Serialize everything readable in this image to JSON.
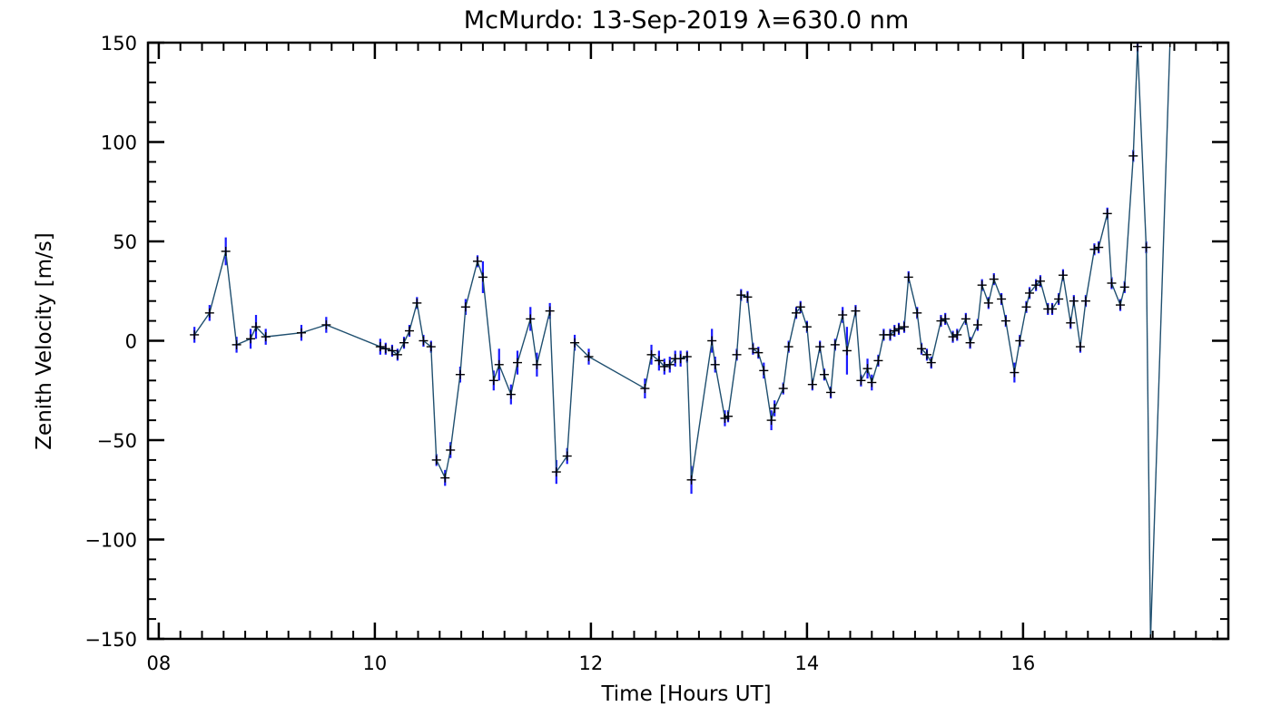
{
  "chart_data": {
    "type": "line",
    "title": "McMurdo: 13-Sep-2019 λ=630.0 nm",
    "xlabel": "Time [Hours UT]",
    "ylabel": "Zenith Velocity [m/s]",
    "xlim": [
      7.9,
      17.9
    ],
    "ylim": [
      -150,
      150
    ],
    "x_ticks": [
      8,
      10,
      12,
      14,
      16
    ],
    "x_tick_labels": [
      "08",
      "10",
      "12",
      "14",
      "16"
    ],
    "y_ticks": [
      -150,
      -100,
      -50,
      0,
      50,
      100,
      150
    ],
    "y_tick_labels": [
      "−150",
      "−100",
      "−50",
      "0",
      "50",
      "100",
      "150"
    ],
    "grid": false,
    "colors": {
      "line": "#1f4f6f",
      "error_bar": "#1a1aff",
      "marker": "#000000",
      "axis": "#000000"
    },
    "series": [
      {
        "marker": "plus",
        "points": [
          {
            "x": 8.33,
            "y": 3,
            "err": 4
          },
          {
            "x": 8.47,
            "y": 14,
            "err": 4
          },
          {
            "x": 8.62,
            "y": 45,
            "err": 7
          },
          {
            "x": 8.72,
            "y": -2,
            "err": 4
          },
          {
            "x": 8.85,
            "y": 1,
            "err": 5
          },
          {
            "x": 8.9,
            "y": 7,
            "err": 6
          },
          {
            "x": 8.99,
            "y": 2,
            "err": 4
          },
          {
            "x": 9.32,
            "y": 4,
            "err": 4
          },
          {
            "x": 9.55,
            "y": 8,
            "err": 4
          },
          {
            "x": 10.05,
            "y": -3,
            "err": 4
          },
          {
            "x": 10.1,
            "y": -4,
            "err": 3
          },
          {
            "x": 10.16,
            "y": -5,
            "err": 3
          },
          {
            "x": 10.21,
            "y": -7,
            "err": 3
          },
          {
            "x": 10.27,
            "y": -1,
            "err": 3
          },
          {
            "x": 10.32,
            "y": 5,
            "err": 3
          },
          {
            "x": 10.39,
            "y": 19,
            "err": 3
          },
          {
            "x": 10.45,
            "y": 0,
            "err": 3
          },
          {
            "x": 10.52,
            "y": -3,
            "err": 3
          },
          {
            "x": 10.57,
            "y": -60,
            "err": 3
          },
          {
            "x": 10.65,
            "y": -69,
            "err": 4
          },
          {
            "x": 10.7,
            "y": -55,
            "err": 4
          },
          {
            "x": 10.79,
            "y": -17,
            "err": 4
          },
          {
            "x": 10.84,
            "y": 17,
            "err": 4
          },
          {
            "x": 10.95,
            "y": 40,
            "err": 3
          },
          {
            "x": 11.0,
            "y": 32,
            "err": 8
          },
          {
            "x": 11.1,
            "y": -20,
            "err": 5
          },
          {
            "x": 11.15,
            "y": -12,
            "err": 8
          },
          {
            "x": 11.26,
            "y": -27,
            "err": 5
          },
          {
            "x": 11.32,
            "y": -11,
            "err": 6
          },
          {
            "x": 11.44,
            "y": 11,
            "err": 6
          },
          {
            "x": 11.5,
            "y": -12,
            "err": 6
          },
          {
            "x": 11.62,
            "y": 15,
            "err": 4
          },
          {
            "x": 11.68,
            "y": -66,
            "err": 6
          },
          {
            "x": 11.78,
            "y": -58,
            "err": 4
          },
          {
            "x": 11.85,
            "y": -1,
            "err": 4
          },
          {
            "x": 11.98,
            "y": -8,
            "err": 4
          },
          {
            "x": 12.5,
            "y": -24,
            "err": 5
          },
          {
            "x": 12.56,
            "y": -7,
            "err": 5
          },
          {
            "x": 12.63,
            "y": -10,
            "err": 5
          },
          {
            "x": 12.68,
            "y": -13,
            "err": 4
          },
          {
            "x": 12.73,
            "y": -12,
            "err": 4
          },
          {
            "x": 12.78,
            "y": -9,
            "err": 4
          },
          {
            "x": 12.83,
            "y": -9,
            "err": 4
          },
          {
            "x": 12.89,
            "y": -8,
            "err": 3
          },
          {
            "x": 12.93,
            "y": -70,
            "err": 7
          },
          {
            "x": 13.12,
            "y": 0,
            "err": 6
          },
          {
            "x": 13.15,
            "y": -12,
            "err": 4
          },
          {
            "x": 13.24,
            "y": -39,
            "err": 4
          },
          {
            "x": 13.27,
            "y": -38,
            "err": 3
          },
          {
            "x": 13.35,
            "y": -7,
            "err": 3
          },
          {
            "x": 13.39,
            "y": 23,
            "err": 3
          },
          {
            "x": 13.45,
            "y": 22,
            "err": 3
          },
          {
            "x": 13.5,
            "y": -4,
            "err": 3
          },
          {
            "x": 13.55,
            "y": -6,
            "err": 3
          },
          {
            "x": 13.6,
            "y": -15,
            "err": 4
          },
          {
            "x": 13.67,
            "y": -40,
            "err": 5
          },
          {
            "x": 13.7,
            "y": -34,
            "err": 4
          },
          {
            "x": 13.78,
            "y": -24,
            "err": 3
          },
          {
            "x": 13.83,
            "y": -3,
            "err": 3
          },
          {
            "x": 13.9,
            "y": 14,
            "err": 3
          },
          {
            "x": 13.94,
            "y": 17,
            "err": 3
          },
          {
            "x": 14.0,
            "y": 7,
            "err": 3
          },
          {
            "x": 14.05,
            "y": -22,
            "err": 3
          },
          {
            "x": 14.12,
            "y": -3,
            "err": 3
          },
          {
            "x": 14.16,
            "y": -17,
            "err": 3
          },
          {
            "x": 14.22,
            "y": -26,
            "err": 3
          },
          {
            "x": 14.26,
            "y": -2,
            "err": 3
          },
          {
            "x": 14.33,
            "y": 13,
            "err": 4
          },
          {
            "x": 14.37,
            "y": -5,
            "err": 12
          },
          {
            "x": 14.45,
            "y": 15,
            "err": 3
          },
          {
            "x": 14.5,
            "y": -20,
            "err": 3
          },
          {
            "x": 14.56,
            "y": -14,
            "err": 5
          },
          {
            "x": 14.6,
            "y": -21,
            "err": 4
          },
          {
            "x": 14.66,
            "y": -10,
            "err": 3
          },
          {
            "x": 14.71,
            "y": 3,
            "err": 3
          },
          {
            "x": 14.77,
            "y": 3,
            "err": 3
          },
          {
            "x": 14.81,
            "y": 5,
            "err": 3
          },
          {
            "x": 14.85,
            "y": 6,
            "err": 3
          },
          {
            "x": 14.9,
            "y": 7,
            "err": 3
          },
          {
            "x": 14.94,
            "y": 32,
            "err": 3
          },
          {
            "x": 15.02,
            "y": 14,
            "err": 3
          },
          {
            "x": 15.06,
            "y": -4,
            "err": 3
          },
          {
            "x": 15.11,
            "y": -7,
            "err": 3
          },
          {
            "x": 15.15,
            "y": -11,
            "err": 3
          },
          {
            "x": 15.24,
            "y": 10,
            "err": 3
          },
          {
            "x": 15.28,
            "y": 11,
            "err": 3
          },
          {
            "x": 15.35,
            "y": 2,
            "err": 3
          },
          {
            "x": 15.39,
            "y": 3,
            "err": 3
          },
          {
            "x": 15.47,
            "y": 11,
            "err": 3
          },
          {
            "x": 15.51,
            "y": -1,
            "err": 3
          },
          {
            "x": 15.58,
            "y": 8,
            "err": 3
          },
          {
            "x": 15.62,
            "y": 28,
            "err": 3
          },
          {
            "x": 15.68,
            "y": 19,
            "err": 3
          },
          {
            "x": 15.73,
            "y": 31,
            "err": 3
          },
          {
            "x": 15.8,
            "y": 21,
            "err": 3
          },
          {
            "x": 15.84,
            "y": 10,
            "err": 3
          },
          {
            "x": 15.92,
            "y": -16,
            "err": 5
          },
          {
            "x": 15.97,
            "y": 0,
            "err": 3
          },
          {
            "x": 16.03,
            "y": 17,
            "err": 3
          },
          {
            "x": 16.06,
            "y": 24,
            "err": 3
          },
          {
            "x": 16.12,
            "y": 28,
            "err": 3
          },
          {
            "x": 16.16,
            "y": 30,
            "err": 3
          },
          {
            "x": 16.23,
            "y": 16,
            "err": 3
          },
          {
            "x": 16.27,
            "y": 16,
            "err": 3
          },
          {
            "x": 16.33,
            "y": 21,
            "err": 3
          },
          {
            "x": 16.37,
            "y": 33,
            "err": 3
          },
          {
            "x": 16.44,
            "y": 9,
            "err": 3
          },
          {
            "x": 16.47,
            "y": 20,
            "err": 3
          },
          {
            "x": 16.53,
            "y": -3,
            "err": 3
          },
          {
            "x": 16.58,
            "y": 20,
            "err": 3
          },
          {
            "x": 16.66,
            "y": 46,
            "err": 3
          },
          {
            "x": 16.7,
            "y": 47,
            "err": 3
          },
          {
            "x": 16.78,
            "y": 64,
            "err": 3
          },
          {
            "x": 16.82,
            "y": 29,
            "err": 3
          },
          {
            "x": 16.9,
            "y": 18,
            "err": 3
          },
          {
            "x": 16.94,
            "y": 27,
            "err": 3
          },
          {
            "x": 17.02,
            "y": 93,
            "err": 3
          },
          {
            "x": 17.06,
            "y": 148,
            "err": 3
          },
          {
            "x": 17.14,
            "y": 47,
            "err": 3
          },
          {
            "x": 17.18,
            "y": -150,
            "err": 0
          },
          {
            "x": 17.36,
            "y": 150,
            "err": 0
          }
        ]
      }
    ]
  }
}
